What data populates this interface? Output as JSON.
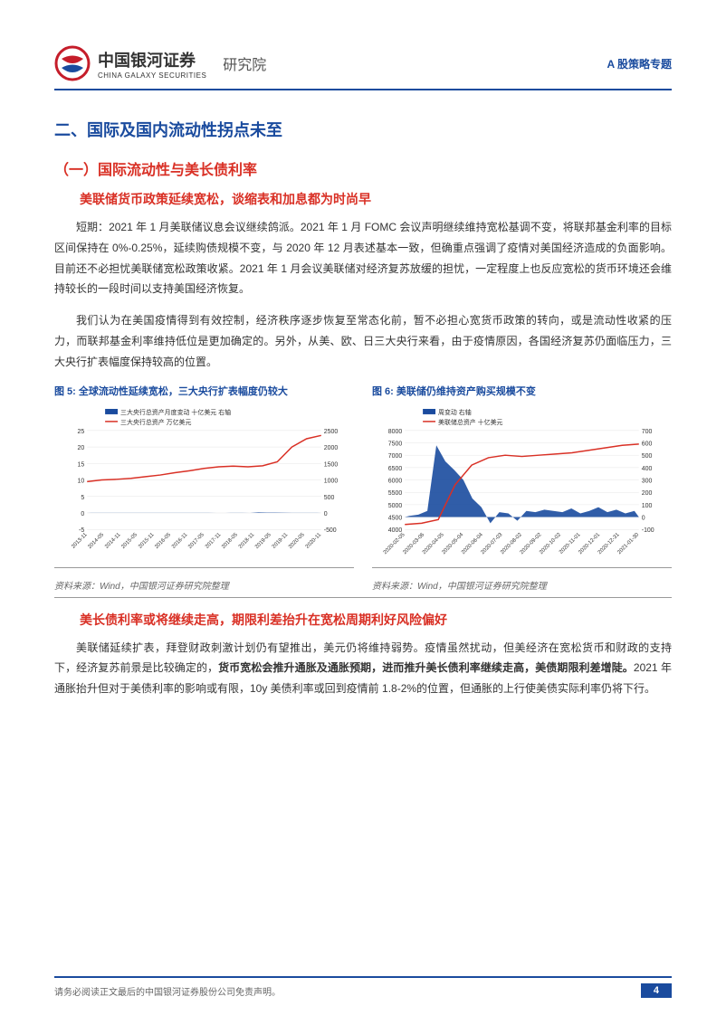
{
  "header": {
    "company_cn": "中国银河证券",
    "company_en": "CHINA GALAXY SECURITIES",
    "division": "研究院",
    "topic": "A 股策略专题"
  },
  "h2": "二、国际及国内流动性拐点未至",
  "h3": "（一）国际流动性与美长债利率",
  "h4_1": "美联储货币政策延续宽松，谈缩表和加息都为时尚早",
  "p1": "短期：2021 年 1 月美联储议息会议继续鸽派。2021 年 1 月 FOMC 会议声明继续维持宽松基调不变，将联邦基金利率的目标区间保持在 0%-0.25%，延续购债规模不变，与 2020 年 12 月表述基本一致，但确重点强调了疫情对美国经济造成的负面影响。目前还不必担忧美联储宽松政策收紧。2021 年 1 月会议美联储对经济复苏放缓的担忧，一定程度上也反应宽松的货币环境还会维持较长的一段时间以支持美国经济恢复。",
  "p2": "我们认为在美国疫情得到有效控制，经济秩序逐步恢复至常态化前，暂不必担心宽货币政策的转向，或是流动性收紧的压力，而联邦基金利率维持低位是更加确定的。另外，从美、欧、日三大央行来看，由于疫情原因，各国经济复苏仍面临压力，三大央行扩表幅度保持较高的位置。",
  "chart5": {
    "title": "图 5: 全球流动性延续宽松，三大央行扩表幅度仍较大",
    "legend_bar": "三大央行总资产月度变动 十亿美元 右轴",
    "legend_line": "三大央行总资产 万亿美元",
    "x_labels": [
      "2013-11",
      "2014-05",
      "2014-11",
      "2015-05",
      "2015-11",
      "2016-05",
      "2016-11",
      "2017-05",
      "2017-11",
      "2018-05",
      "2018-11",
      "2019-05",
      "2019-11",
      "2020-05",
      "2020-11"
    ],
    "left_ylim": [
      -5,
      25
    ],
    "left_yticks": [
      -5,
      0,
      5,
      10,
      15,
      20,
      25
    ],
    "right_ylim": [
      -500,
      2500
    ],
    "right_yticks": [
      -500,
      0,
      500,
      1000,
      1500,
      2000,
      2500
    ],
    "line_values": [
      9.5,
      10,
      10.2,
      10.5,
      11,
      11.5,
      12.2,
      12.8,
      13.5,
      14,
      14.2,
      14,
      14.3,
      15.5,
      20,
      22.5,
      23.5
    ],
    "bar_values": [
      3,
      2,
      3,
      4,
      3,
      2,
      4,
      3,
      4,
      5,
      3,
      4,
      5,
      3,
      2,
      -1,
      1,
      3,
      2,
      1,
      18,
      12,
      9,
      6,
      4,
      3,
      5,
      4
    ],
    "line_color": "#d93025",
    "bar_color": "#1a4b9e",
    "bg": "#ffffff",
    "grid": "#e5e5e5",
    "source": "资料来源：Wind，中国银河证券研究院整理"
  },
  "chart6": {
    "title": "图 6: 美联储仍维持资产购买规模不变",
    "legend_bar": "周变动 右轴",
    "legend_line": "美联储总资产 十亿美元",
    "x_labels": [
      "2020-02-05",
      "2020-03-06",
      "2020-04-05",
      "2020-05-04",
      "2020-06-04",
      "2020-07-03",
      "2020-08-02",
      "2020-09-02",
      "2020-10-02",
      "2020-11-01",
      "2020-12-01",
      "2020-12-31",
      "2021-01-30"
    ],
    "left_ylim": [
      4000,
      8000
    ],
    "left_yticks": [
      4000,
      4500,
      5000,
      5500,
      6000,
      6500,
      7000,
      7500,
      8000
    ],
    "right_ylim": [
      -100,
      700
    ],
    "right_yticks": [
      -100,
      0,
      100,
      200,
      300,
      400,
      500,
      600,
      700
    ],
    "line_values": [
      4200,
      4250,
      4400,
      5800,
      6600,
      6900,
      7000,
      6950,
      7000,
      7050,
      7100,
      7200,
      7300,
      7400,
      7450
    ],
    "bar_values": [
      10,
      20,
      50,
      580,
      450,
      380,
      300,
      150,
      80,
      -50,
      40,
      30,
      -30,
      50,
      40,
      60,
      50,
      40,
      70,
      30,
      50,
      80,
      40,
      60,
      30,
      50
    ],
    "line_color": "#d93025",
    "bar_color": "#1a4b9e",
    "bg": "#ffffff",
    "grid": "#e5e5e5",
    "source": "资料来源：Wind，中国银河证券研究院整理"
  },
  "h4_2": "美长债利率或将继续走高，期限利差抬升在宽松周期利好风险偏好",
  "p3_a": "美联储延续扩表，拜登财政刺激计划仍有望推出，美元仍将维持弱势。疫情虽然扰动，但美经济在宽松货币和财政的支持下，经济复苏前景是比较确定的，",
  "p3_bold": "货币宽松会推升通胀及通胀预期，进而推升美长债利率继续走高，美债期限利差增陡。",
  "p3_b": "2021 年通胀抬升但对于美债利率的影响或有限，10y 美债利率或回到疫情前 1.8-2%的位置，但通胀的上行使美债实际利率仍将下行。",
  "footer": {
    "disclaimer": "请务必阅读正文最后的中国银河证券股份公司免责声明。",
    "page": "4"
  }
}
